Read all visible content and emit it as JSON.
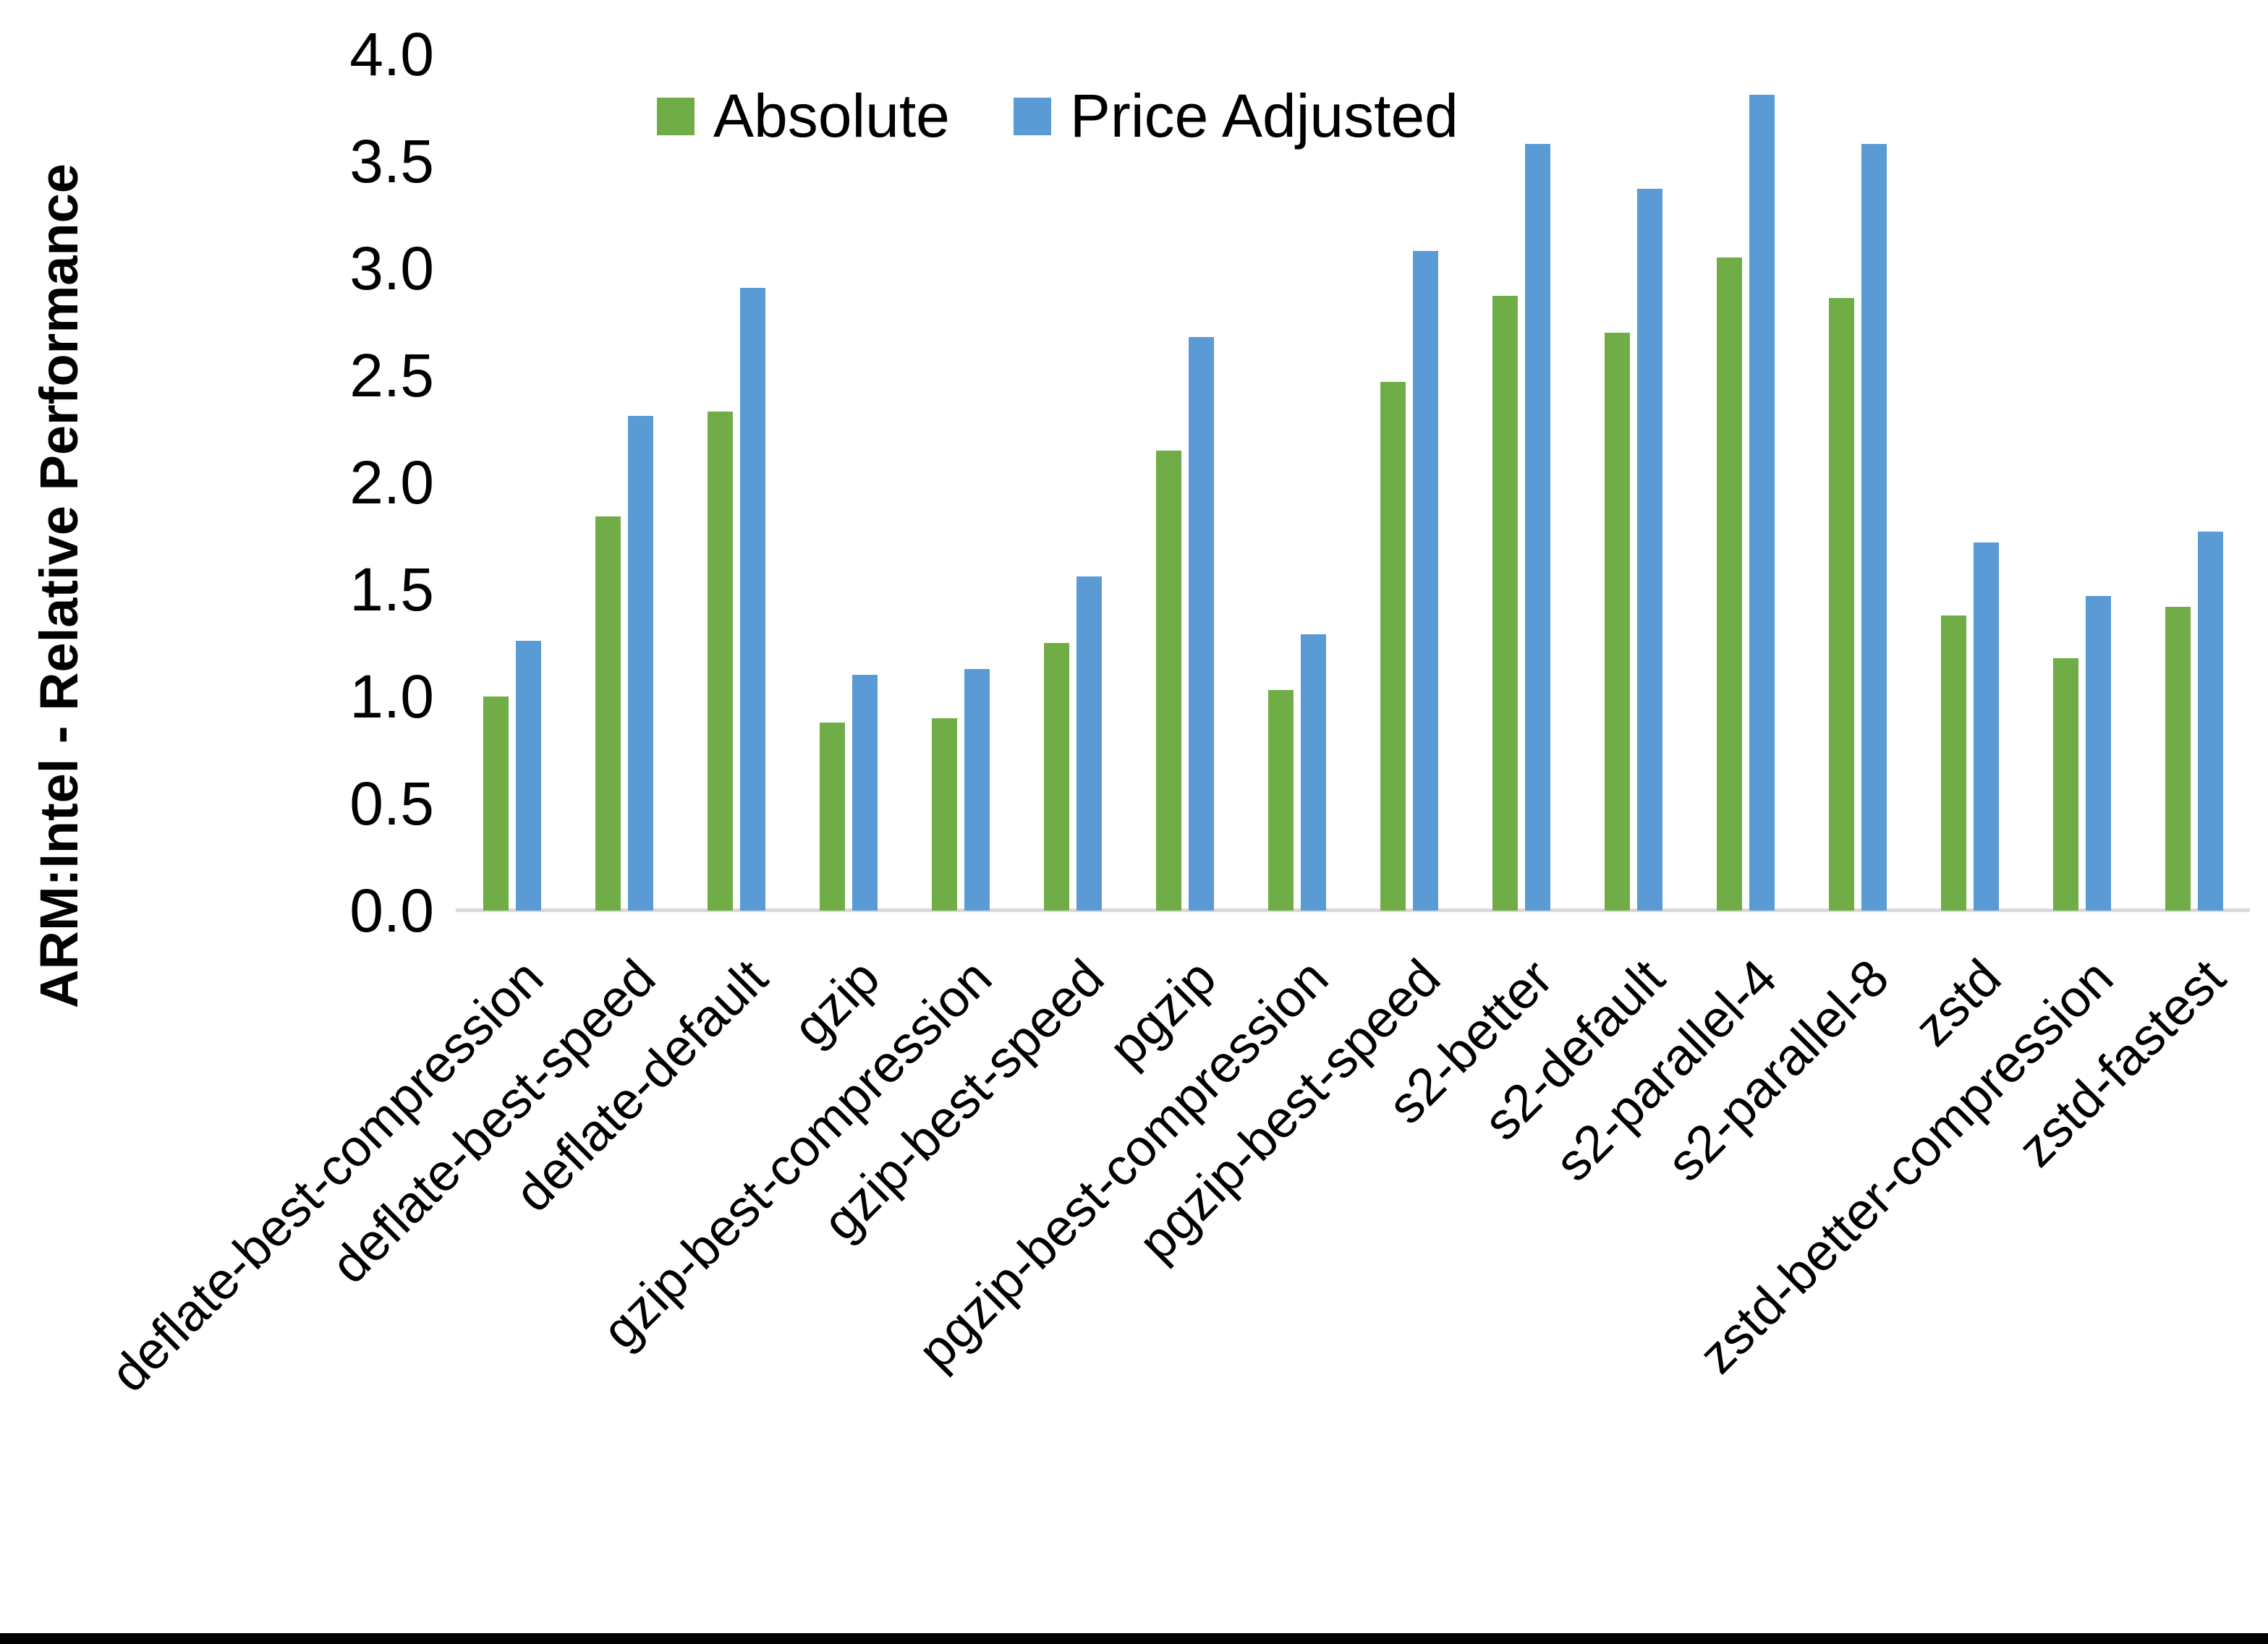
{
  "chart_data": {
    "type": "bar",
    "title": "",
    "xlabel": "",
    "ylabel": "ARM:Intel - Relative Performance",
    "ylim": [
      0.0,
      4.0
    ],
    "ytick_step": 0.5,
    "yticks": [
      "4.0",
      "3.5",
      "3.0",
      "2.5",
      "2.0",
      "1.5",
      "1.0",
      "0.5",
      "0.0"
    ],
    "grid": false,
    "legend_position": "top-center",
    "categories": [
      "deflate-best-compression",
      "deflate-best-speed",
      "deflate-default",
      "gzip",
      "gzip-best-compression",
      "gzip-best-speed",
      "pgzip",
      "pgzip-best-compression",
      "pgzip-best-speed",
      "s2-better",
      "s2-default",
      "s2-parallel-4",
      "s2-parallel-8",
      "zstd",
      "zstd-better-compression",
      "zstd-fastest"
    ],
    "series": [
      {
        "name": "Absolute",
        "color": "#70AD47",
        "values": [
          1.0,
          1.84,
          2.33,
          0.88,
          0.9,
          1.25,
          2.15,
          1.03,
          2.47,
          2.87,
          2.7,
          3.05,
          2.86,
          1.38,
          1.18,
          1.42
        ]
      },
      {
        "name": "Price Adjusted",
        "color": "#5B9BD5",
        "values": [
          1.26,
          2.31,
          2.91,
          1.1,
          1.13,
          1.56,
          2.68,
          1.29,
          3.08,
          3.58,
          3.37,
          3.81,
          3.58,
          1.72,
          1.47,
          1.77
        ]
      }
    ]
  },
  "colors": {
    "background": "#FFFFFF",
    "axis_line": "#D9D9D9",
    "text": "#000000",
    "bottom_border": "#000000",
    "series_absolute": "#70AD47",
    "series_price_adjusted": "#5B9BD5"
  }
}
